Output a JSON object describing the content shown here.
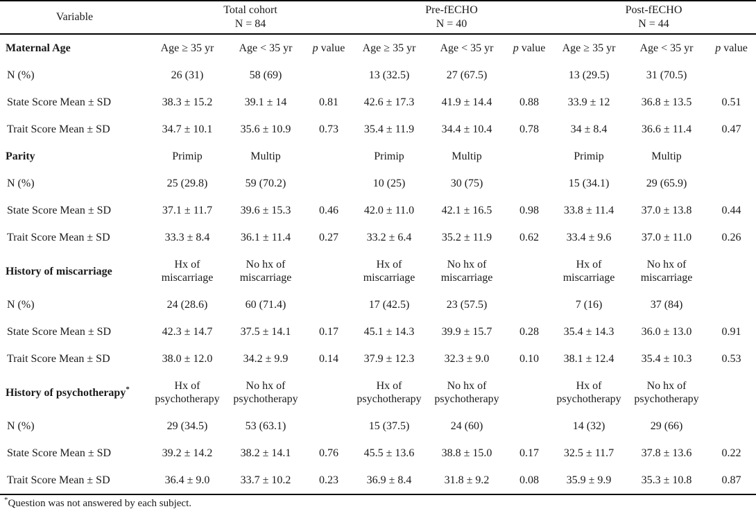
{
  "colors": {
    "background": "#ffffff",
    "text": "#1a1a1a",
    "rule": "#000000"
  },
  "table": {
    "header": {
      "variable_label": "Variable",
      "groups": [
        {
          "title": "Total cohort",
          "n": "N = 84"
        },
        {
          "title": "Pre-fECHO",
          "n": "N = 40"
        },
        {
          "title": "Post-fECHO",
          "n": "N = 44"
        }
      ]
    },
    "sections": [
      {
        "title": "Maternal Age",
        "title_sup": "",
        "col_labels": [
          "Age ≥ 35 yr",
          "Age < 35 yr"
        ],
        "p_label": {
          "italic": "p",
          "text": " value"
        },
        "rows": [
          {
            "label": "N (%)",
            "cells": [
              "26 (31)",
              "58 (69)",
              "",
              "13 (32.5)",
              "27 (67.5)",
              "",
              "13 (29.5)",
              "31 (70.5)",
              ""
            ]
          },
          {
            "label": "State Score Mean ± SD",
            "cells": [
              "38.3 ± 15.2",
              "39.1 ± 14",
              "0.81",
              "42.6 ± 17.3",
              "41.9 ± 14.4",
              "0.88",
              "33.9 ± 12",
              "36.8 ± 13.5",
              "0.51"
            ]
          },
          {
            "label": "Trait Score Mean ± SD",
            "cells": [
              "34.7 ± 10.1",
              "35.6 ± 10.9",
              "0.73",
              "35.4 ± 11.9",
              "34.4 ± 10.4",
              "0.78",
              "34 ± 8.4",
              "36.6 ± 11.4",
              "0.47"
            ]
          }
        ]
      },
      {
        "title": "Parity",
        "title_sup": "",
        "col_labels": [
          "Primip",
          "Multip"
        ],
        "p_label": null,
        "rows": [
          {
            "label": "N (%)",
            "cells": [
              "25 (29.8)",
              "59 (70.2)",
              "",
              "10 (25)",
              "30 (75)",
              "",
              "15 (34.1)",
              "29 (65.9)",
              ""
            ]
          },
          {
            "label": "State Score Mean ± SD",
            "cells": [
              "37.1 ± 11.7",
              "39.6 ± 15.3",
              "0.46",
              "42.0 ± 11.0",
              "42.1 ± 16.5",
              "0.98",
              "33.8 ± 11.4",
              "37.0 ± 13.8",
              "0.44"
            ]
          },
          {
            "label": "Trait Score Mean ± SD",
            "cells": [
              "33.3 ± 8.4",
              "36.1 ± 11.4",
              "0.27",
              "33.2 ± 6.4",
              "35.2 ± 11.9",
              "0.62",
              "33.4 ± 9.6",
              "37.0 ± 11.0",
              "0.26"
            ]
          }
        ]
      },
      {
        "title": "History of miscarriage",
        "title_sup": "",
        "col_labels": [
          "Hx of miscarriage",
          "No hx of miscarriage"
        ],
        "p_label": null,
        "rows": [
          {
            "label": "N (%)",
            "cells": [
              "24 (28.6)",
              "60 (71.4)",
              "",
              "17 (42.5)",
              "23 (57.5)",
              "",
              "7 (16)",
              "37 (84)",
              ""
            ]
          },
          {
            "label": "State Score Mean ± SD",
            "cells": [
              "42.3 ± 14.7",
              "37.5 ± 14.1",
              "0.17",
              "45.1 ± 14.3",
              "39.9 ± 15.7",
              "0.28",
              "35.4 ± 14.3",
              "36.0 ± 13.0",
              "0.91"
            ]
          },
          {
            "label": "Trait Score Mean ± SD",
            "cells": [
              "38.0 ± 12.0",
              "34.2 ± 9.9",
              "0.14",
              "37.9 ± 12.3",
              "32.3 ± 9.0",
              "0.10",
              "38.1 ± 12.4",
              "35.4 ± 10.3",
              "0.53"
            ]
          }
        ]
      },
      {
        "title": "History of psychotherapy",
        "title_sup": "*",
        "col_labels": [
          "Hx of psychotherapy",
          "No hx of psychotherapy"
        ],
        "p_label": null,
        "rows": [
          {
            "label": "N (%)",
            "cells": [
              "29 (34.5)",
              "53 (63.1)",
              "",
              "15 (37.5)",
              "24 (60)",
              "",
              "14 (32)",
              "29 (66)",
              ""
            ]
          },
          {
            "label": "State Score Mean ± SD",
            "cells": [
              "39.2 ± 14.2",
              "38.2 ± 14.1",
              "0.76",
              "45.5 ± 13.6",
              "38.8 ± 15.0",
              "0.17",
              "32.5 ± 11.7",
              "37.8 ± 13.6",
              "0.22"
            ]
          },
          {
            "label": "Trait Score Mean ± SD",
            "cells": [
              "36.4 ± 9.0",
              "33.7 ± 10.2",
              "0.23",
              "36.9 ± 8.4",
              "31.8 ± 9.2",
              "0.08",
              "35.9 ± 9.9",
              "35.3 ± 10.8",
              "0.87"
            ]
          }
        ]
      }
    ],
    "footnote_marker": "*",
    "footnote_text": "Question was not answered by each subject."
  }
}
